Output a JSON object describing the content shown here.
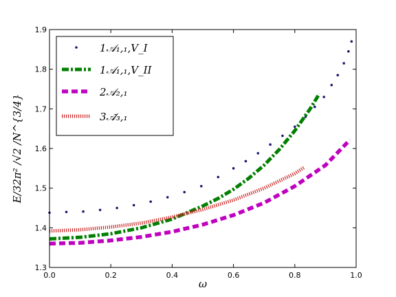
{
  "chart_data": {
    "type": "scatter",
    "xlabel": "ω",
    "ylabel": "E/32π² /√2 /N^{3/4}",
    "xlim": [
      0.0,
      1.0
    ],
    "ylim": [
      1.3,
      1.9
    ],
    "xticks": [
      "0.0",
      "0.2",
      "0.4",
      "0.6",
      "0.8",
      "1.0"
    ],
    "yticks": [
      "1.3",
      "1.4",
      "1.5",
      "1.6",
      "1.7",
      "1.8",
      "1.9"
    ],
    "legend_position": "upper-left",
    "grid": false,
    "series": [
      {
        "name": "1𝒜₁,₁,V_I",
        "style": "dots",
        "color": "#191970",
        "x": [
          0.0,
          0.055,
          0.11,
          0.165,
          0.22,
          0.275,
          0.33,
          0.385,
          0.44,
          0.495,
          0.55,
          0.6,
          0.64,
          0.68,
          0.72,
          0.76,
          0.8,
          0.835,
          0.865,
          0.895,
          0.92,
          0.94,
          0.96,
          0.975,
          0.985
        ],
        "y": [
          1.438,
          1.44,
          1.441,
          1.445,
          1.45,
          1.457,
          1.466,
          1.477,
          1.49,
          1.505,
          1.528,
          1.55,
          1.568,
          1.588,
          1.61,
          1.632,
          1.655,
          1.68,
          1.705,
          1.73,
          1.76,
          1.785,
          1.815,
          1.845,
          1.87
        ]
      },
      {
        "name": "1𝒜₁,₁,V_II",
        "style": "dashdot",
        "color": "#007f00",
        "x": [
          0.0,
          0.1,
          0.2,
          0.3,
          0.4,
          0.5,
          0.55,
          0.6,
          0.65,
          0.7,
          0.75,
          0.8,
          0.85,
          0.88
        ],
        "y": [
          1.372,
          1.376,
          1.385,
          1.4,
          1.422,
          1.455,
          1.474,
          1.497,
          1.525,
          1.558,
          1.598,
          1.645,
          1.7,
          1.738
        ]
      },
      {
        "name": "2𝒜₂,₁",
        "style": "dashed",
        "color": "#bf00bf",
        "x": [
          0.0,
          0.1,
          0.2,
          0.3,
          0.4,
          0.5,
          0.6,
          0.7,
          0.8,
          0.9,
          0.98
        ],
        "y": [
          1.36,
          1.362,
          1.368,
          1.377,
          1.39,
          1.408,
          1.432,
          1.463,
          1.505,
          1.558,
          1.622
        ]
      },
      {
        "name": "3𝒜̃₃,₁",
        "style": "dotted",
        "color": "#cc2222",
        "x": [
          0.0,
          0.1,
          0.2,
          0.3,
          0.4,
          0.5,
          0.6,
          0.7,
          0.8,
          0.83
        ],
        "y": [
          1.392,
          1.395,
          1.402,
          1.412,
          1.427,
          1.446,
          1.47,
          1.5,
          1.537,
          1.552
        ]
      }
    ]
  }
}
